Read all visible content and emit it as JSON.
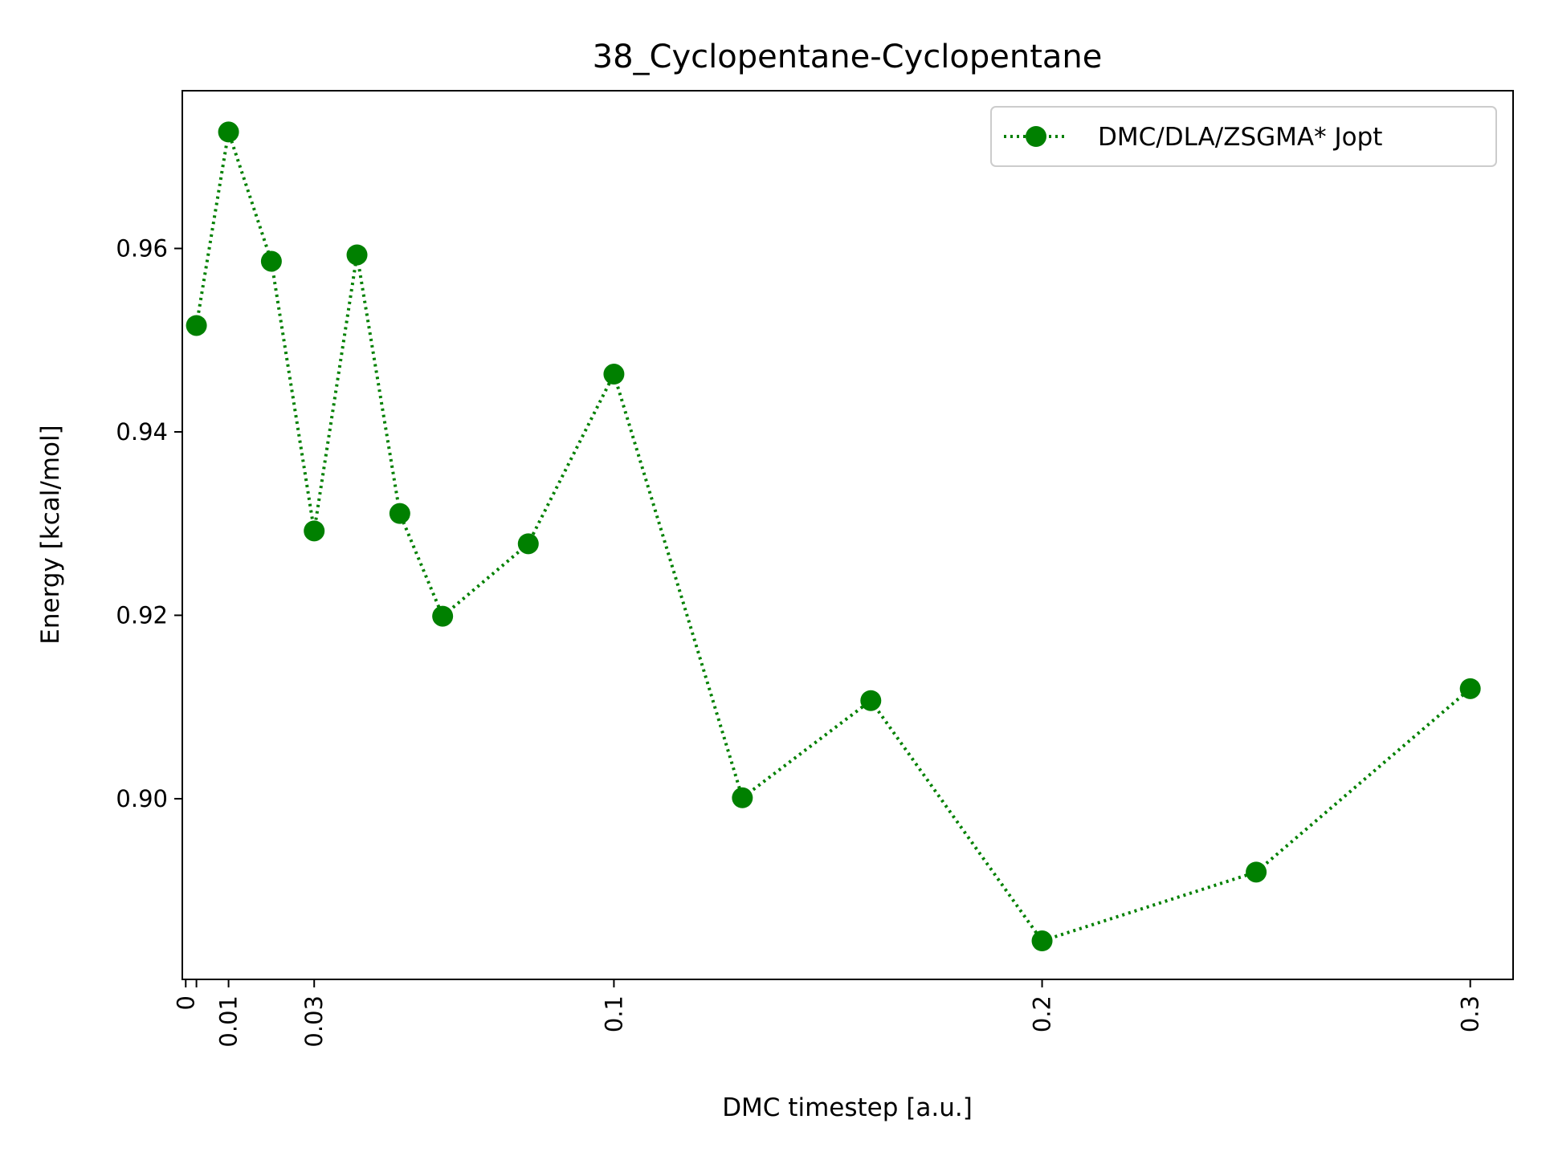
{
  "chart_data": {
    "type": "line",
    "title": "38_Cyclopentane-Cyclopentane",
    "xlabel": "DMC timestep [a.u.]",
    "ylabel": "Energy [kcal/mol]",
    "xlim": [
      -0.0008,
      0.31
    ],
    "ylim": [
      0.8803,
      0.9772
    ],
    "xticks": [
      {
        "value": 0,
        "label": "0"
      },
      {
        "value": 0.0025,
        "label": ""
      },
      {
        "value": 0.01,
        "label": "0.01"
      },
      {
        "value": 0.03,
        "label": "0.03"
      },
      {
        "value": 0.1,
        "label": "0.1"
      },
      {
        "value": 0.2,
        "label": "0.2"
      },
      {
        "value": 0.3,
        "label": "0.3"
      }
    ],
    "yticks": [
      {
        "value": 0.9,
        "label": "0.90"
      },
      {
        "value": 0.92,
        "label": "0.92"
      },
      {
        "value": 0.94,
        "label": "0.94"
      },
      {
        "value": 0.96,
        "label": "0.96"
      }
    ],
    "grid": false,
    "legend_position": "top-right",
    "series": [
      {
        "name": "DMC/DLA/ZSGMA* Jopt",
        "color": "#008000",
        "line_style": "dotted",
        "marker": "circle",
        "x": [
          0.0025,
          0.01,
          0.02,
          0.03,
          0.04,
          0.05,
          0.06,
          0.08,
          0.1,
          0.13,
          0.16,
          0.2,
          0.25,
          0.3
        ],
        "y": [
          0.9516,
          0.9727,
          0.9586,
          0.9292,
          0.9593,
          0.9311,
          0.9199,
          0.9278,
          0.9463,
          0.9001,
          0.9107,
          0.8845,
          0.892,
          0.912
        ]
      }
    ]
  }
}
